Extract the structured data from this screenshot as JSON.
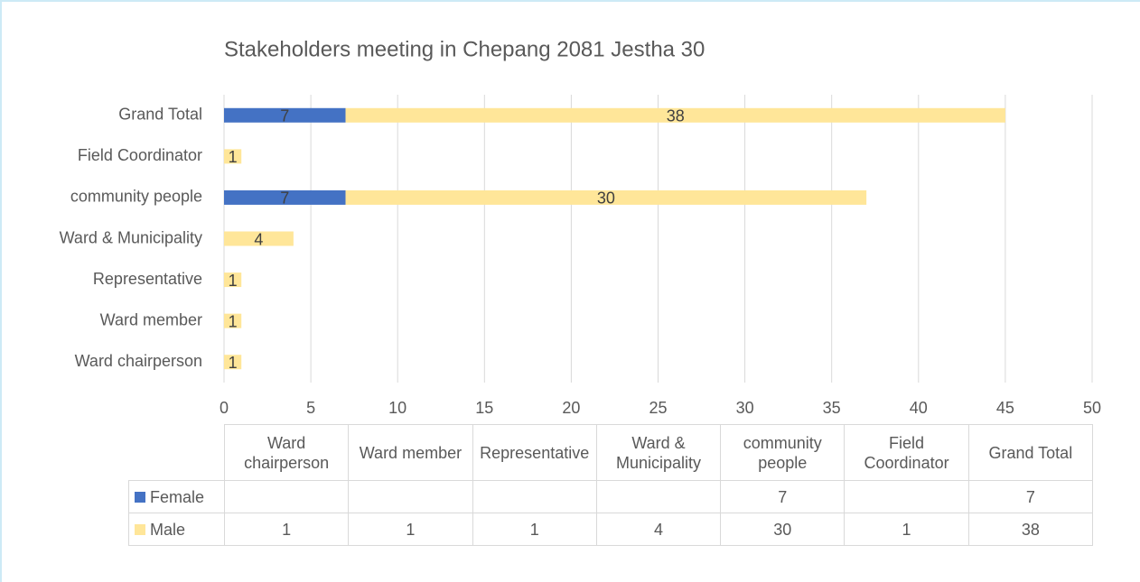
{
  "chart_data": {
    "type": "stacked-barh",
    "title": "Stakeholders meeting in Chepang 2081 Jestha 30",
    "categories": [
      "Ward chairperson",
      "Ward member",
      "Representative",
      "Ward & Municipality",
      "community people",
      "Field Coordinator",
      "Grand Total"
    ],
    "series": [
      {
        "name": "Female",
        "color": "#4472c4",
        "values": [
          null,
          null,
          null,
          null,
          7,
          null,
          7
        ]
      },
      {
        "name": "Male",
        "color": "#ffe699",
        "values": [
          1,
          1,
          1,
          4,
          30,
          1,
          38
        ]
      }
    ],
    "xlim": [
      0,
      50
    ],
    "xticks": [
      0,
      5,
      10,
      15,
      20,
      25,
      30,
      35,
      40,
      45,
      50
    ],
    "grid": true
  }
}
